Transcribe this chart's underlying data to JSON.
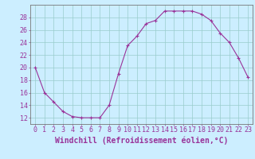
{
  "x": [
    0,
    1,
    2,
    3,
    4,
    5,
    6,
    7,
    8,
    9,
    10,
    11,
    12,
    13,
    14,
    15,
    16,
    17,
    18,
    19,
    20,
    21,
    22,
    23
  ],
  "y": [
    20,
    16,
    14.5,
    13,
    12.2,
    12,
    12,
    12,
    14,
    19,
    23.5,
    25,
    27,
    27.5,
    29,
    29,
    29,
    29,
    28.5,
    27.5,
    25.5,
    24,
    21.5,
    18.5
  ],
  "line_color": "#993399",
  "marker": "+",
  "background_color": "#cceeff",
  "grid_color": "#99cccc",
  "xlabel": "Windchill (Refroidissement éolien,°C)",
  "xlabel_color": "#993399",
  "ylabel_ticks": [
    12,
    14,
    16,
    18,
    20,
    22,
    24,
    26,
    28
  ],
  "ylim": [
    11,
    30
  ],
  "xlim": [
    -0.5,
    23.5
  ],
  "tick_color": "#993399",
  "axis_color": "#777777",
  "font_size": 6,
  "xlabel_font_size": 7,
  "marker_size": 3,
  "line_width": 0.8
}
